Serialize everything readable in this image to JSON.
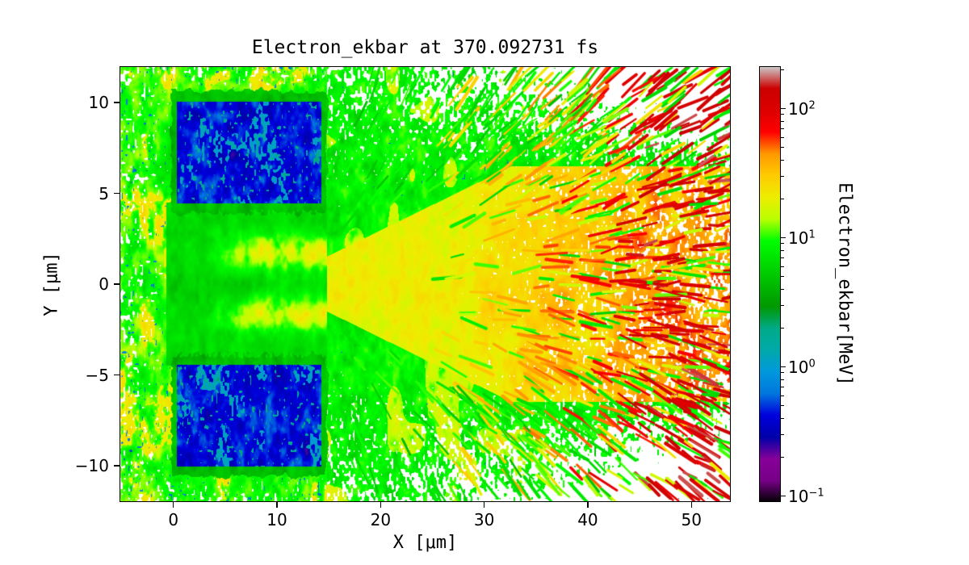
{
  "figure": {
    "title": "Electron_ekbar at 370.092731 fs",
    "xlabel": "X [μm]",
    "ylabel": "Y [μm]",
    "colorbar_label": "Electron_ekbar[MeV]",
    "background": "#ffffff",
    "spine_color": "#000000"
  },
  "chart_data": {
    "type": "heatmap",
    "title": "Electron_ekbar at 370.092731 fs",
    "time_fs": 370.092731,
    "xlabel": "X [μm]",
    "ylabel": "Y [μm]",
    "grid": false,
    "x_range": [
      -5.2,
      53.8
    ],
    "y_range": [
      -12,
      12
    ],
    "x_ticks": [
      0,
      10,
      20,
      30,
      40,
      50
    ],
    "y_ticks": [
      10,
      5,
      0,
      -5,
      -10
    ],
    "color_scale": {
      "label": "Electron_ekbar[MeV]",
      "scale": "log",
      "vmin": 0.09,
      "vmax": 213,
      "major_tick_exponents": [
        2,
        1,
        0,
        -1
      ],
      "colormap": "nipy_spectral",
      "colormap_stops": [
        [
          0,
          0,
          0
        ],
        [
          0.4667,
          0,
          0.5333
        ],
        [
          0.5333,
          0,
          0.6
        ],
        [
          0,
          0,
          0.6667
        ],
        [
          0,
          0,
          0.8667
        ],
        [
          0,
          0.4667,
          0.8667
        ],
        [
          0,
          0.6,
          0.8667
        ],
        [
          0,
          0.6667,
          0.6667
        ],
        [
          0,
          0.6667,
          0.5333
        ],
        [
          0,
          0.6,
          0
        ],
        [
          0,
          0.7333,
          0
        ],
        [
          0,
          0.8667,
          0
        ],
        [
          0,
          1,
          0
        ],
        [
          0.7333,
          1,
          0
        ],
        [
          0.9333,
          0.9333,
          0
        ],
        [
          1,
          0.8,
          0
        ],
        [
          1,
          0.6,
          0
        ],
        [
          1,
          0,
          0
        ],
        [
          0.8667,
          0,
          0
        ],
        [
          0.8,
          0,
          0
        ],
        [
          0.8,
          0.8,
          0.8
        ]
      ]
    },
    "features": {
      "description": "2D electron mean-kinetic-energy map from a laser-plasma simulation: two cold target blocks (0.2-1 MeV, dark blue with cyan speckle) at x 0-15 um, y +/-(4-10.5) um; warm ambient plasma halo 5-21 MeV (green/yellow) on the left and around the blocks; a hot electron jet (15-80 MeV, yellow/orange) expanding in a cone from the gap between the blocks toward +x; sparse filamentary electron bunches up to 200 MeV (red streaks) beyond x of about 40 um; white background where no electrons.",
      "target_blocks": [
        {
          "x": [
            -0.2,
            14.8
          ],
          "y": [
            3.9,
            10.6
          ],
          "core_energy_mev": [
            0.22,
            0.8
          ],
          "speckle_energy_mev": 1.3,
          "rim_energy_mev": 4
        },
        {
          "x": [
            -0.2,
            14.8
          ],
          "y": [
            -10.6,
            -3.9
          ],
          "core_energy_mev": [
            0.22,
            0.8
          ],
          "speckle_energy_mev": 1.3,
          "rim_energy_mev": 4
        }
      ],
      "channel": {
        "x": [
          -0.2,
          14.8
        ],
        "half_width": 3.9,
        "base_energy_mev": 6,
        "filament_offset_um": 1.7,
        "filament_energy_mev": 22
      },
      "ambient": {
        "energy_mev": [
          5,
          21
        ]
      },
      "plume": {
        "apex_x": 14.8,
        "core_half_width_start": 1.5,
        "core_spread": 0.28,
        "core_half_width_max": 6.5,
        "fringe_extra_width": 3.5,
        "core_energy_mev": [
          12,
          80
        ]
      },
      "jets": {
        "x": [
          26,
          54
        ],
        "count": 1200,
        "origin": [
          8,
          0
        ],
        "energy_mev": [
          6,
          200
        ],
        "length_um": [
          1.1,
          3.1
        ]
      },
      "fringe_jets": {
        "x": [
          17,
          42
        ],
        "count": 320,
        "energy_mev": [
          4.5,
          11.5
        ]
      }
    }
  }
}
